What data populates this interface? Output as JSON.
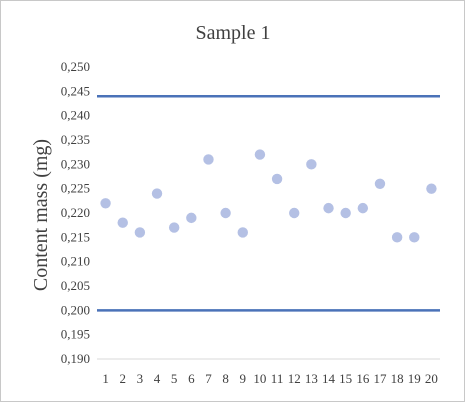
{
  "chart_data": {
    "type": "scatter",
    "title": "Sample 1",
    "xlabel": "",
    "ylabel": "Content mass (mg)",
    "x": [
      1,
      2,
      3,
      4,
      5,
      6,
      7,
      8,
      9,
      10,
      11,
      12,
      13,
      14,
      15,
      16,
      17,
      18,
      19,
      20
    ],
    "y": [
      0.222,
      0.218,
      0.216,
      0.224,
      0.217,
      0.219,
      0.231,
      0.22,
      0.216,
      0.232,
      0.227,
      0.22,
      0.23,
      0.221,
      0.22,
      0.221,
      0.226,
      0.215,
      0.215,
      0.225
    ],
    "ylim": [
      0.19,
      0.25
    ],
    "yticks": [
      "0,190",
      "0,195",
      "0,200",
      "0,205",
      "0,210",
      "0,215",
      "0,220",
      "0,225",
      "0,230",
      "0,235",
      "0,240",
      "0,245",
      "0,250"
    ],
    "xticks": [
      "1",
      "2",
      "3",
      "4",
      "5",
      "6",
      "7",
      "8",
      "9",
      "10",
      "11",
      "12",
      "13",
      "14",
      "15",
      "16",
      "17",
      "18",
      "19",
      "20"
    ],
    "reference_lines": [
      0.244,
      0.2
    ],
    "grid": false,
    "legend": "none",
    "point_color": "#b4c0e4",
    "line_color": "#4a72b8"
  }
}
